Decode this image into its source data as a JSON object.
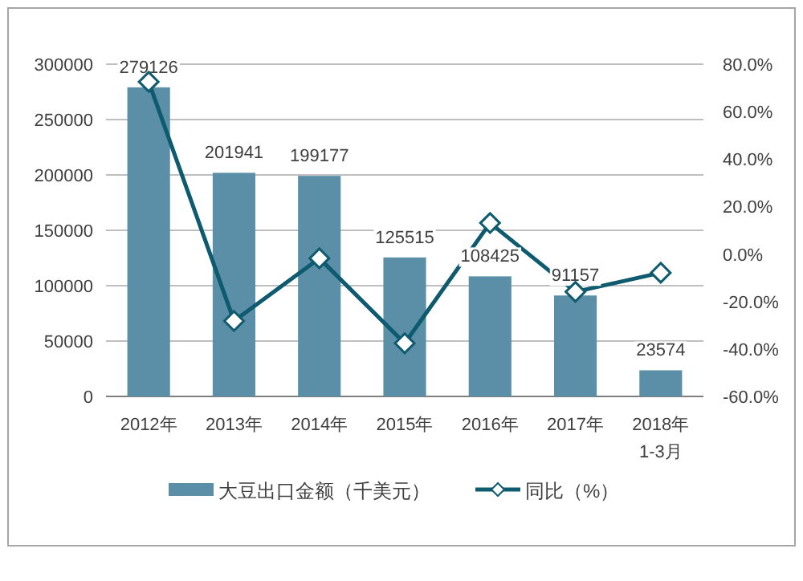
{
  "chart_data": {
    "type": "bar",
    "categories": [
      "2012年",
      "2013年",
      "2014年",
      "2015年",
      "2016年",
      "2017年",
      "2018年\n1-3月"
    ],
    "series": [
      {
        "name": "大豆出口金额（千美元）",
        "color": "#5b8fa8",
        "values": [
          279126,
          201941,
          199177,
          125515,
          108425,
          91157,
          23574
        ],
        "value_labels": [
          "279126",
          "201941",
          "199177",
          "125515",
          "108425",
          "91157",
          "23574"
        ]
      },
      {
        "name": "同比（%）",
        "type": "line",
        "axis": "y2",
        "color": "#0e5a6e",
        "marker": "diamond",
        "values": [
          72.6,
          -28.2,
          -1.8,
          -37.6,
          13.1,
          -15.9,
          -7.9
        ]
      }
    ],
    "ylim": [
      0,
      300000
    ],
    "yticks": [
      0,
      50000,
      100000,
      150000,
      200000,
      250000,
      300000
    ],
    "y2lim": [
      -60,
      80
    ],
    "y2ticks": [
      {
        "value": -60,
        "label": "-60.0%"
      },
      {
        "value": -40,
        "label": "-40.0%"
      },
      {
        "value": -20,
        "label": "-20.0%"
      },
      {
        "value": 0,
        "label": "0.0%"
      },
      {
        "value": 20,
        "label": "20.0%"
      },
      {
        "value": 40,
        "label": "40.0%"
      },
      {
        "value": 60,
        "label": "60.0%"
      },
      {
        "value": 80,
        "label": "80.0%"
      }
    ],
    "grid": "y",
    "legend": "bottom"
  }
}
